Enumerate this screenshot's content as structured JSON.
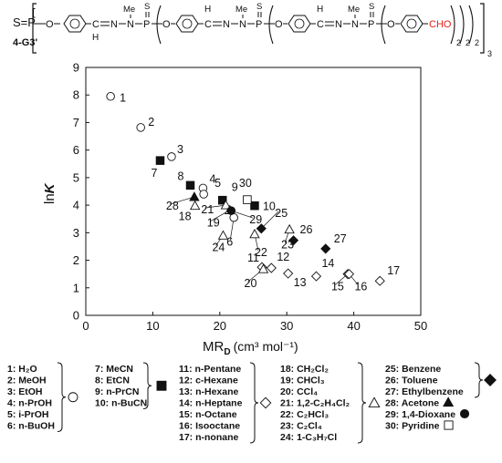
{
  "formula": {
    "prefix": "S=P",
    "tag": "4-G3'",
    "me_label": "Me",
    "s_label": "S",
    "h_label": "H",
    "o_label": "O",
    "p_label": "P",
    "n_label": "N",
    "c_label": "C",
    "cho_label": "CHO",
    "cho_color": "#e0201b",
    "subscripts": [
      "2",
      "2",
      "2",
      "3"
    ]
  },
  "chart_data": {
    "type": "scatter",
    "xlabel_main": "MR",
    "xlabel_sub": "D",
    "xlabel_unit": "(cm³ mol⁻¹)",
    "ylabel_main": "ln",
    "ylabel_k": "K",
    "xlim": [
      0,
      50
    ],
    "ylim": [
      0,
      9
    ],
    "xticks": [
      "0",
      "10",
      "20",
      "30",
      "40",
      "50"
    ],
    "yticks": [
      "0",
      "1",
      "2",
      "3",
      "4",
      "5",
      "6",
      "7",
      "8",
      "9"
    ],
    "points": [
      {
        "id": "1",
        "x": 3.7,
        "y": 7.95,
        "marker": "circle-open"
      },
      {
        "id": "2",
        "x": 8.2,
        "y": 6.82,
        "marker": "circle-open"
      },
      {
        "id": "3",
        "x": 12.8,
        "y": 5.76,
        "marker": "circle-open"
      },
      {
        "id": "4",
        "x": 17.5,
        "y": 4.62,
        "marker": "circle-open"
      },
      {
        "id": "5",
        "x": 17.6,
        "y": 4.4,
        "marker": "circle-open"
      },
      {
        "id": "6",
        "x": 22.1,
        "y": 3.55,
        "marker": "circle-open"
      },
      {
        "id": "7",
        "x": 11.1,
        "y": 5.62,
        "marker": "square-filled"
      },
      {
        "id": "8",
        "x": 15.6,
        "y": 4.72,
        "marker": "square-filled"
      },
      {
        "id": "9",
        "x": 20.4,
        "y": 4.18,
        "marker": "square-filled"
      },
      {
        "id": "10",
        "x": 25.2,
        "y": 3.98,
        "marker": "square-filled"
      },
      {
        "id": "11",
        "x": 26.3,
        "y": 1.75,
        "marker": "diamond-open"
      },
      {
        "id": "12",
        "x": 27.7,
        "y": 1.72,
        "marker": "diamond-open"
      },
      {
        "id": "13",
        "x": 30.2,
        "y": 1.52,
        "marker": "diamond-open"
      },
      {
        "id": "14",
        "x": 34.4,
        "y": 1.42,
        "marker": "diamond-open"
      },
      {
        "id": "15",
        "x": 39.1,
        "y": 1.5,
        "marker": "diamond-open"
      },
      {
        "id": "16",
        "x": 39.3,
        "y": 1.5,
        "marker": "diamond-open"
      },
      {
        "id": "17",
        "x": 43.9,
        "y": 1.25,
        "marker": "diamond-open"
      },
      {
        "id": "18",
        "x": 16.3,
        "y": 3.98,
        "marker": "triangle-open"
      },
      {
        "id": "19",
        "x": 21.5,
        "y": 3.82,
        "marker": "triangle-open"
      },
      {
        "id": "20",
        "x": 26.5,
        "y": 1.68,
        "marker": "triangle-open"
      },
      {
        "id": "21",
        "x": 20.9,
        "y": 4.0,
        "marker": "triangle-open"
      },
      {
        "id": "22",
        "x": 25.2,
        "y": 2.95,
        "marker": "triangle-open"
      },
      {
        "id": "23",
        "x": 30.4,
        "y": 3.12,
        "marker": "triangle-open"
      },
      {
        "id": "24",
        "x": 20.5,
        "y": 2.9,
        "marker": "triangle-open"
      },
      {
        "id": "25",
        "x": 26.2,
        "y": 3.15,
        "marker": "diamond-filled"
      },
      {
        "id": "26",
        "x": 31.0,
        "y": 2.72,
        "marker": "diamond-filled"
      },
      {
        "id": "27",
        "x": 35.8,
        "y": 2.42,
        "marker": "diamond-filled"
      },
      {
        "id": "28",
        "x": 16.2,
        "y": 4.3,
        "marker": "triangle-filled"
      },
      {
        "id": "29",
        "x": 21.7,
        "y": 3.8,
        "marker": "circle-filled"
      },
      {
        "id": "30",
        "x": 24.1,
        "y": 4.2,
        "marker": "square-open"
      }
    ],
    "legend_groups": [
      {
        "marker": "circle-open",
        "entries": [
          "1: H₂O",
          "2: MeOH",
          "3: EtOH",
          "4: n-PrOH",
          "5: i-PrOH",
          "6: n-BuOH"
        ]
      },
      {
        "marker": "square-filled",
        "entries": [
          "7: MeCN",
          "8: EtCN",
          "9: n-PrCN",
          "10: n-BuCN"
        ]
      },
      {
        "marker": "diamond-open",
        "entries": [
          "11: n-Pentane",
          "12: c-Hexane",
          "13: n-Hexane",
          "14: n-Heptane",
          "15: n-Octane",
          "16: Isooctane",
          "17: n-nonane"
        ]
      },
      {
        "marker": "triangle-open",
        "entries": [
          "18: CH₂Cl₂",
          "19: CHCl₃",
          "20: CCl₄",
          "21: 1,2-C₂H₄Cl₂",
          "22: C₂HCl₃",
          "23: C₂Cl₄",
          "24: 1-C₃H₇Cl"
        ]
      },
      {
        "marker": "diamond-filled",
        "entries": [
          "25: Benzene",
          "26: Toluene",
          "27: Ethylbenzene"
        ]
      },
      {
        "marker": "triangle-filled",
        "entries": [
          "28: Acetone"
        ]
      },
      {
        "marker": "circle-filled",
        "entries": [
          "29: 1,4-Dioxane"
        ]
      },
      {
        "marker": "square-open",
        "entries": [
          "30: Pyridine"
        ]
      }
    ]
  }
}
